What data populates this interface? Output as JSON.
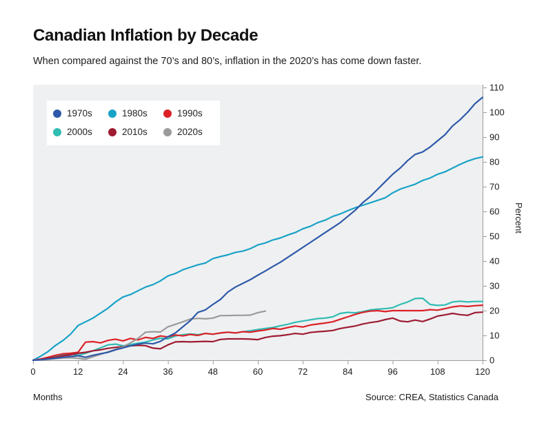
{
  "header": {
    "title": "Canadian Inflation by Decade",
    "subtitle": "When compared against the 70’s and 80’s, inflation in the 2020’s has come down faster."
  },
  "footer": {
    "source": "Source: CREA, Statistics Canada"
  },
  "chart_data": {
    "type": "line",
    "title": "Canadian Inflation by Decade",
    "subtitle": "When compared against the 70’s and 80’s, inflation in the 2020’s has come down faster.",
    "xlabel": "Months",
    "ylabel": "Percent",
    "xlim": [
      0,
      120
    ],
    "ylim": [
      0,
      110
    ],
    "x_ticks": [
      0,
      12,
      24,
      36,
      48,
      60,
      72,
      84,
      96,
      108,
      120
    ],
    "y_ticks": [
      0,
      10,
      20,
      30,
      40,
      50,
      60,
      70,
      80,
      90,
      100,
      110
    ],
    "grid": false,
    "legend_position": "top-left",
    "plot_background": "#eff0f2",
    "axis_color": "#9b9b9b",
    "month_step": 2,
    "series": [
      {
        "name": "1970s",
        "color": "#2e59a8",
        "values": [
          0,
          0.2,
          0.5,
          0.8,
          1.2,
          1.5,
          1.8,
          1.2,
          2,
          2.6,
          3.2,
          4.2,
          5,
          5.8,
          6.5,
          6.9,
          6.6,
          7.6,
          9.5,
          11,
          13.5,
          16,
          19.3,
          20.3,
          22.5,
          24.5,
          27.5,
          29.5,
          31,
          32.5,
          34.3,
          36,
          37.8,
          39.5,
          41.5,
          43.5,
          45.5,
          47.5,
          49.5,
          51.5,
          53.5,
          55.5,
          58,
          60.5,
          63.5,
          66,
          69,
          72,
          75,
          77.5,
          80.5,
          83,
          84,
          86,
          88.5,
          91,
          94.5,
          97,
          100,
          103.5,
          106
        ]
      },
      {
        "name": "1980s",
        "color": "#17a2c6",
        "values": [
          0,
          1.6,
          3.5,
          6,
          8,
          10.5,
          14,
          15.5,
          17,
          19,
          21,
          23.5,
          25.5,
          26.5,
          28,
          29.5,
          30.5,
          32,
          34,
          35,
          36.5,
          37.5,
          38.5,
          39.2,
          41,
          41.8,
          42.5,
          43.5,
          44,
          45,
          46.5,
          47.3,
          48.5,
          49.3,
          50.5,
          51.5,
          53,
          54,
          55.5,
          56.5,
          58,
          59,
          60.3,
          61.5,
          62.5,
          63.5,
          64.5,
          65.5,
          67.5,
          69,
          70,
          71,
          72.5,
          73.5,
          75,
          76,
          77.5,
          79,
          80.3,
          81.3,
          82
        ]
      },
      {
        "name": "1990s",
        "color": "#db2127",
        "values": [
          0,
          0.5,
          1.2,
          2,
          2.6,
          2.8,
          3.2,
          7.3,
          7.5,
          7,
          8,
          8.5,
          7.8,
          8.8,
          8.2,
          9.2,
          8.8,
          9.8,
          9.4,
          10.2,
          9.8,
          10.4,
          10,
          10.8,
          10.5,
          11,
          11.3,
          11,
          11.5,
          11.3,
          11.8,
          12.2,
          12.8,
          12.5,
          13.2,
          13.8,
          13.4,
          14.2,
          14.6,
          15,
          15.5,
          16.5,
          17.5,
          18.5,
          19.3,
          19.8,
          20,
          19.6,
          20,
          20,
          20,
          20,
          20,
          20.4,
          20.2,
          20.8,
          21.5,
          21.9,
          21.7,
          22,
          22.2
        ]
      },
      {
        "name": "2000s",
        "color": "#2fbcb2",
        "values": [
          0,
          0.4,
          1,
          1.6,
          2.2,
          2.6,
          2,
          2.8,
          3.8,
          5,
          6.2,
          6.5,
          5.8,
          6.3,
          6.9,
          7.3,
          8.2,
          8.9,
          8.6,
          9.8,
          10.3,
          10.6,
          10.3,
          10.8,
          10.5,
          11,
          11.3,
          11,
          11.5,
          11.9,
          12.4,
          12.8,
          13.2,
          13.9,
          14.5,
          15.3,
          15.8,
          16.3,
          16.8,
          17,
          17.5,
          18.9,
          19.3,
          19.1,
          19.6,
          20.3,
          20.6,
          20.8,
          21.2,
          22.5,
          23.5,
          24.9,
          25,
          22.5,
          22.1,
          22.3,
          23.5,
          23.8,
          23.5,
          23.7,
          23.7
        ]
      },
      {
        "name": "2010s",
        "color": "#9e1b32",
        "values": [
          0,
          0.3,
          0.8,
          1.2,
          1.8,
          2.2,
          2.8,
          3.2,
          3.8,
          4.2,
          4.8,
          5.2,
          5.5,
          5.8,
          6,
          5.9,
          4.9,
          4.6,
          6.2,
          7.4,
          7.5,
          7.4,
          7.5,
          7.6,
          7.5,
          8.4,
          8.6,
          8.6,
          8.6,
          8.5,
          8.3,
          9.2,
          9.7,
          9.9,
          10.3,
          10.8,
          10.5,
          11.2,
          11.5,
          11.7,
          12,
          12.8,
          13.3,
          13.8,
          14.6,
          15.2,
          15.6,
          16.4,
          17,
          15.8,
          15.5,
          16.2,
          15.6,
          16.6,
          17.8,
          18.3,
          18.9,
          18.4,
          18.1,
          19.2,
          19.4
        ]
      },
      {
        "name": "2020s",
        "color": "#9a9a9a",
        "values": [
          0,
          0.2,
          0.4,
          0.7,
          0.9,
          1,
          0.8,
          0.4,
          1.4,
          2.4,
          3.4,
          4.4,
          5.4,
          7,
          8.8,
          11.3,
          11.5,
          11.4,
          13.5,
          14.5,
          15.5,
          16.6,
          16.9,
          16.7,
          17,
          18,
          18,
          18.1,
          18.1,
          18.2,
          19.2,
          19.8
        ]
      }
    ]
  }
}
